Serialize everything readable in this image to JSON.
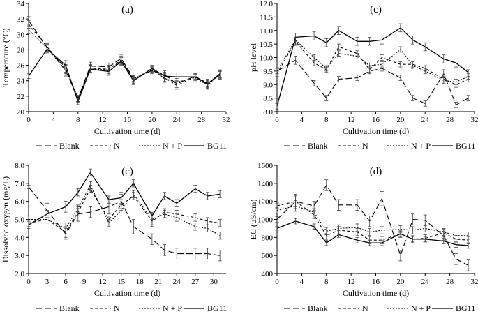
{
  "legend_labels": [
    "Blank",
    "N",
    "N + P",
    "BG11"
  ],
  "chart_data": [
    {
      "type": "line",
      "title": "(a)",
      "xlabel": "Cultivation time (d)",
      "ylabel": "Temperature (°C)",
      "xlim": [
        0,
        32
      ],
      "ylim": [
        20,
        34
      ],
      "xticks": [
        0,
        4,
        8,
        12,
        16,
        20,
        24,
        28,
        32
      ],
      "yticks": [
        20,
        22,
        24,
        26,
        28,
        30,
        32,
        34
      ],
      "ytick_labels": [
        "20",
        "22",
        "24",
        "26",
        "28",
        "30",
        "32",
        "34"
      ],
      "x": [
        0,
        3,
        6,
        8,
        10,
        13,
        15,
        17,
        20,
        22,
        24,
        27,
        29,
        31
      ],
      "series": [
        {
          "name": "Blank",
          "values": [
            31.8,
            28.3,
            25.3,
            21.7,
            25.9,
            25.8,
            26.9,
            24.3,
            25.3,
            24.8,
            23.6,
            24.6,
            23.5,
            24.9
          ],
          "err": [
            0.5,
            0.5,
            0.7,
            0.4,
            0.5,
            0.5,
            0.5,
            0.4,
            0.4,
            0.5,
            0.5,
            0.4,
            0.5,
            0.5
          ]
        },
        {
          "name": "N",
          "values": [
            31.3,
            28.4,
            25.5,
            21.6,
            25.6,
            25.5,
            26.7,
            24.1,
            25.4,
            24.4,
            23.4,
            24.5,
            23.7,
            24.7
          ],
          "err": [
            0.5,
            0.5,
            0.6,
            0.4,
            0.5,
            0.5,
            0.5,
            0.5,
            0.4,
            0.5,
            0.5,
            0.4,
            0.5,
            0.5
          ]
        },
        {
          "name": "N + P",
          "values": [
            30.6,
            28.2,
            25.7,
            21.7,
            25.5,
            25.4,
            26.6,
            24.2,
            25.5,
            24.3,
            23.8,
            24.4,
            23.4,
            24.8
          ],
          "err": [
            0.5,
            0.5,
            0.6,
            0.4,
            0.5,
            0.5,
            0.5,
            0.5,
            0.4,
            0.5,
            0.5,
            0.4,
            0.5,
            0.5
          ]
        },
        {
          "name": "BG11",
          "values": [
            24.6,
            28.1,
            26.0,
            21.3,
            25.5,
            25.2,
            26.5,
            24.0,
            25.6,
            24.6,
            24.5,
            24.5,
            23.6,
            24.9
          ],
          "err": [
            0.3,
            0.5,
            0.6,
            0.4,
            0.5,
            0.5,
            0.5,
            0.5,
            0.4,
            0.5,
            0.5,
            0.4,
            0.5,
            0.5
          ]
        }
      ]
    },
    {
      "type": "line",
      "title": "(c)",
      "xlabel": "Cultivation time (d)",
      "ylabel": "pH level",
      "xlim": [
        0,
        32
      ],
      "ylim": [
        8,
        12
      ],
      "xticks": [
        0,
        4,
        8,
        12,
        16,
        20,
        24,
        28,
        32
      ],
      "yticks": [
        8,
        8.5,
        9,
        9.5,
        10,
        10.5,
        11,
        11.5,
        12
      ],
      "ytick_labels": [
        "8.0",
        "8.5",
        "9.0",
        "9.5",
        "10.0",
        "10.5",
        "11.0",
        "11.5",
        "12.0"
      ],
      "x": [
        0,
        3,
        6,
        8,
        10,
        13,
        15,
        17,
        20,
        22,
        24,
        27,
        29,
        31
      ],
      "series": [
        {
          "name": "Blank",
          "values": [
            9.5,
            9.9,
            9.05,
            8.5,
            9.2,
            9.25,
            9.5,
            9.6,
            9.25,
            8.5,
            8.3,
            9.4,
            8.25,
            8.5
          ],
          "err": [
            0.1,
            0.15,
            0.1,
            0.1,
            0.1,
            0.1,
            0.1,
            0.1,
            0.1,
            0.1,
            0.1,
            0.15,
            0.1,
            0.1
          ]
        },
        {
          "name": "N",
          "values": [
            9.4,
            10.6,
            9.8,
            9.55,
            10.4,
            10.15,
            9.55,
            10.0,
            9.75,
            9.75,
            9.6,
            9.2,
            9.0,
            9.2
          ],
          "err": [
            0.1,
            0.15,
            0.1,
            0.1,
            0.1,
            0.1,
            0.1,
            0.1,
            0.1,
            0.1,
            0.1,
            0.1,
            0.1,
            0.1
          ]
        },
        {
          "name": "N + P",
          "values": [
            9.5,
            10.65,
            10.0,
            9.6,
            10.15,
            10.05,
            9.7,
            9.75,
            10.3,
            9.7,
            9.5,
            9.15,
            9.1,
            9.3
          ],
          "err": [
            0.1,
            0.15,
            0.1,
            0.1,
            0.1,
            0.1,
            0.1,
            0.1,
            0.1,
            0.1,
            0.1,
            0.1,
            0.1,
            0.1
          ]
        },
        {
          "name": "BG11",
          "values": [
            8.2,
            10.75,
            10.8,
            10.55,
            11.0,
            10.6,
            10.6,
            10.65,
            11.1,
            10.65,
            10.4,
            9.95,
            9.8,
            9.45
          ],
          "err": [
            0.1,
            0.15,
            0.15,
            0.15,
            0.15,
            0.15,
            0.15,
            0.15,
            0.15,
            0.15,
            0.15,
            0.15,
            0.15,
            0.1
          ]
        }
      ]
    },
    {
      "type": "line",
      "title": "(c)",
      "xlabel": "Cultivation time (d)",
      "ylabel": "Dissolved oxygen (mg/L)",
      "xlim": [
        0,
        32
      ],
      "ylim": [
        2,
        8
      ],
      "xticks": [
        0,
        3,
        6,
        9,
        12,
        15,
        18,
        21,
        24,
        27,
        30
      ],
      "yticks": [
        2,
        3,
        4,
        5,
        6,
        7,
        8
      ],
      "ytick_labels": [
        "2.0",
        "3.0",
        "4.0",
        "5.0",
        "6.0",
        "7.0",
        "8.0"
      ],
      "x": [
        0,
        3,
        6,
        8,
        10,
        13,
        15,
        17,
        20,
        22,
        24,
        27,
        29,
        31
      ],
      "series": [
        {
          "name": "Blank",
          "values": [
            6.8,
            5.5,
            4.2,
            5.3,
            5.4,
            5.7,
            6.0,
            4.6,
            3.9,
            3.3,
            3.1,
            3.1,
            3.1,
            3.0
          ],
          "err": [
            0.1,
            0.4,
            0.3,
            0.4,
            0.3,
            0.4,
            0.4,
            0.4,
            0.3,
            0.3,
            0.3,
            0.3,
            0.3,
            0.3
          ]
        },
        {
          "name": "N",
          "values": [
            4.8,
            5.0,
            4.3,
            5.4,
            6.7,
            5.0,
            5.8,
            6.3,
            4.9,
            5.4,
            5.3,
            5.1,
            4.9,
            4.8
          ],
          "err": [
            0.2,
            0.2,
            0.3,
            0.2,
            0.2,
            0.2,
            0.3,
            0.2,
            0.3,
            0.2,
            0.2,
            0.2,
            0.2,
            0.2
          ]
        },
        {
          "name": "N + P",
          "values": [
            5.0,
            5.0,
            4.5,
            5.6,
            6.9,
            4.8,
            5.5,
            6.4,
            5.0,
            5.3,
            5.1,
            4.6,
            4.5,
            4.1
          ],
          "err": [
            0.2,
            0.2,
            0.3,
            0.2,
            0.2,
            0.2,
            0.3,
            0.2,
            0.3,
            0.2,
            0.2,
            0.2,
            0.2,
            0.2
          ]
        },
        {
          "name": "BG11",
          "values": [
            4.7,
            5.3,
            5.7,
            6.5,
            7.6,
            6.1,
            6.2,
            7.0,
            5.2,
            6.3,
            5.9,
            6.7,
            6.3,
            6.4
          ],
          "err": [
            0.2,
            0.2,
            0.3,
            0.2,
            0.2,
            0.2,
            0.3,
            0.2,
            0.2,
            0.2,
            0.2,
            0.2,
            0.2,
            0.2
          ]
        }
      ]
    },
    {
      "type": "line",
      "title": "(d)",
      "xlabel": "Cultivation time (d)",
      "ylabel": "EC (µS/cm)",
      "xlim": [
        0,
        32
      ],
      "ylim": [
        400,
        1600
      ],
      "xticks": [
        0,
        4,
        8,
        12,
        16,
        20,
        24,
        28,
        32
      ],
      "yticks": [
        400,
        600,
        800,
        1000,
        1200,
        1400,
        1600
      ],
      "ytick_labels": [
        "400",
        "600",
        "800",
        "1000",
        "1200",
        "1400",
        "1600"
      ],
      "x": [
        0,
        3,
        6,
        8,
        10,
        13,
        15,
        17,
        20,
        22,
        24,
        27,
        29,
        31
      ],
      "series": [
        {
          "name": "Blank",
          "values": [
            1000,
            1200,
            1150,
            1380,
            1160,
            1160,
            980,
            1230,
            600,
            1000,
            990,
            820,
            560,
            490
          ],
          "err": [
            30,
            80,
            50,
            60,
            60,
            60,
            60,
            80,
            60,
            60,
            60,
            50,
            60,
            60
          ]
        },
        {
          "name": "N",
          "values": [
            1150,
            1200,
            1050,
            820,
            880,
            860,
            770,
            770,
            840,
            780,
            790,
            850,
            780,
            770
          ],
          "err": [
            30,
            60,
            40,
            40,
            40,
            40,
            40,
            40,
            40,
            40,
            40,
            40,
            40,
            40
          ]
        },
        {
          "name": "N + P",
          "values": [
            1100,
            1150,
            1080,
            870,
            900,
            910,
            860,
            880,
            890,
            880,
            900,
            860,
            820,
            820
          ],
          "err": [
            30,
            60,
            40,
            40,
            40,
            40,
            40,
            40,
            40,
            40,
            40,
            40,
            40,
            40
          ]
        },
        {
          "name": "BG11",
          "values": [
            900,
            980,
            920,
            740,
            830,
            770,
            740,
            740,
            840,
            780,
            780,
            760,
            720,
            710
          ],
          "err": [
            20,
            30,
            30,
            30,
            30,
            30,
            30,
            30,
            30,
            30,
            30,
            30,
            30,
            30
          ]
        }
      ]
    }
  ]
}
